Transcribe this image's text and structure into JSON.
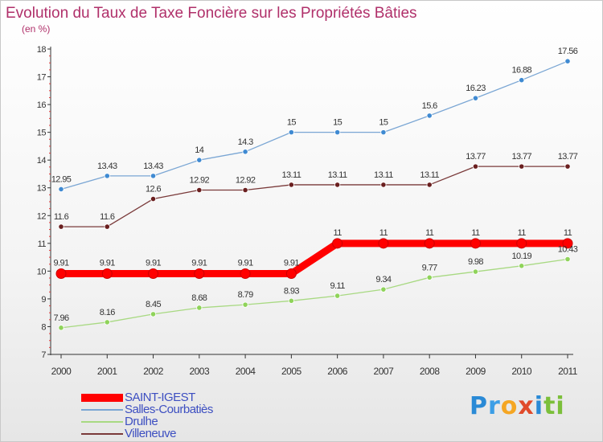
{
  "title": "Evolution du Taux de Taxe Foncière sur les Propriétés Bâties",
  "subtitle": "(en %)",
  "logo_text": "Proxiti",
  "logo_letters": [
    "P",
    "r",
    "o",
    "x",
    "i",
    "ti"
  ],
  "chart_data": {
    "type": "line",
    "title": "Evolution du Taux de Taxe Foncière sur les Propriétés Bâties",
    "subtitle": "(en %)",
    "xlabel": "",
    "ylabel": "",
    "x": [
      "2000",
      "2001",
      "2002",
      "2003",
      "2004",
      "2005",
      "2006",
      "2007",
      "2008",
      "2009",
      "2010",
      "2011"
    ],
    "ylim": [
      7,
      18
    ],
    "yticks": [
      "7",
      "8",
      "9",
      "10",
      "11",
      "12",
      "13",
      "14",
      "15",
      "16",
      "17",
      "18"
    ],
    "grid": false,
    "legend_position": "bottom-left",
    "series": [
      {
        "name": "SAINT-IGEST",
        "color": "#ff0000",
        "emphasis": true,
        "values": [
          9.91,
          9.91,
          9.91,
          9.91,
          9.91,
          9.91,
          11,
          11,
          11,
          11,
          11,
          11
        ],
        "labels": [
          "9.91",
          "9.91",
          "9.91",
          "9.91",
          "9.91",
          "9.91",
          "11",
          "11",
          "11",
          "11",
          "11",
          "11"
        ]
      },
      {
        "name": "Salles-Courbatiès",
        "color": "#7aa6d4",
        "marker_color": "#3f8ad2",
        "values": [
          12.95,
          13.43,
          13.43,
          14,
          14.3,
          15,
          15,
          15,
          15.6,
          16.23,
          16.88,
          17.56
        ],
        "labels": [
          "12.95",
          "13.43",
          "13.43",
          "14",
          "14.3",
          "15",
          "15",
          "15",
          "15.6",
          "16.23",
          "16.88",
          "17.56"
        ]
      },
      {
        "name": "Drulhe",
        "color": "#a8d982",
        "marker_color": "#8fd35a",
        "values": [
          7.96,
          8.16,
          8.45,
          8.68,
          8.79,
          8.93,
          9.11,
          9.34,
          9.77,
          9.98,
          10.19,
          10.43
        ],
        "labels": [
          "7.96",
          "8.16",
          "8.45",
          "8.68",
          "8.79",
          "8.93",
          "9.11",
          "9.34",
          "9.77",
          "9.98",
          "10.19",
          "10.43"
        ]
      },
      {
        "name": "Villeneuve",
        "color": "#7a3a3a",
        "marker_color": "#6a1f1f",
        "values": [
          11.6,
          11.6,
          12.6,
          12.92,
          12.92,
          13.11,
          13.11,
          13.11,
          13.11,
          13.77,
          13.77,
          13.77
        ],
        "labels": [
          "11.6",
          "11.6",
          "12.6",
          "12.92",
          "12.92",
          "13.11",
          "13.11",
          "13.11",
          "13.11",
          "13.77",
          "13.77",
          "13.77"
        ]
      }
    ]
  }
}
